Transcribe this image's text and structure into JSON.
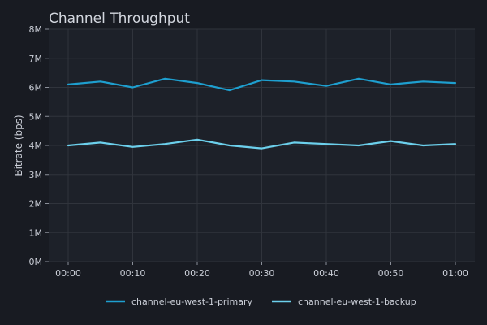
{
  "chart_data": {
    "type": "line",
    "title": "Channel Throughput",
    "xlabel": "",
    "ylabel": "Bitrate (bps)",
    "x": [
      "00:00",
      "00:05",
      "00:10",
      "00:15",
      "00:20",
      "00:25",
      "00:30",
      "00:35",
      "00:40",
      "00:45",
      "00:50",
      "00:55",
      "01:00"
    ],
    "xtick_labels": [
      "00:00",
      "00:10",
      "00:20",
      "00:30",
      "00:40",
      "00:50",
      "01:00"
    ],
    "ylim": [
      0,
      8000000
    ],
    "yticks": [
      0,
      1000000,
      2000000,
      3000000,
      4000000,
      5000000,
      6000000,
      7000000,
      8000000
    ],
    "ytick_labels": [
      "0M",
      "1M",
      "2M",
      "3M",
      "4M",
      "5M",
      "6M",
      "7M",
      "8M"
    ],
    "grid": true,
    "legend": "bottom-center",
    "series": [
      {
        "name": "channel-eu-west-1-primary",
        "color": "#1e9fcf",
        "values": [
          6100000,
          6200000,
          6000000,
          6300000,
          6150000,
          5900000,
          6250000,
          6200000,
          6050000,
          6300000,
          6100000,
          6200000,
          6150000
        ]
      },
      {
        "name": "channel-eu-west-1-backup",
        "color": "#6cd0ec",
        "values": [
          4000000,
          4100000,
          3950000,
          4050000,
          4200000,
          4000000,
          3900000,
          4100000,
          4050000,
          4000000,
          4150000,
          4000000,
          4050000
        ]
      }
    ]
  },
  "colors": {
    "background": "#181b22",
    "plot_background": "#1d2129",
    "grid": "#30343c"
  }
}
